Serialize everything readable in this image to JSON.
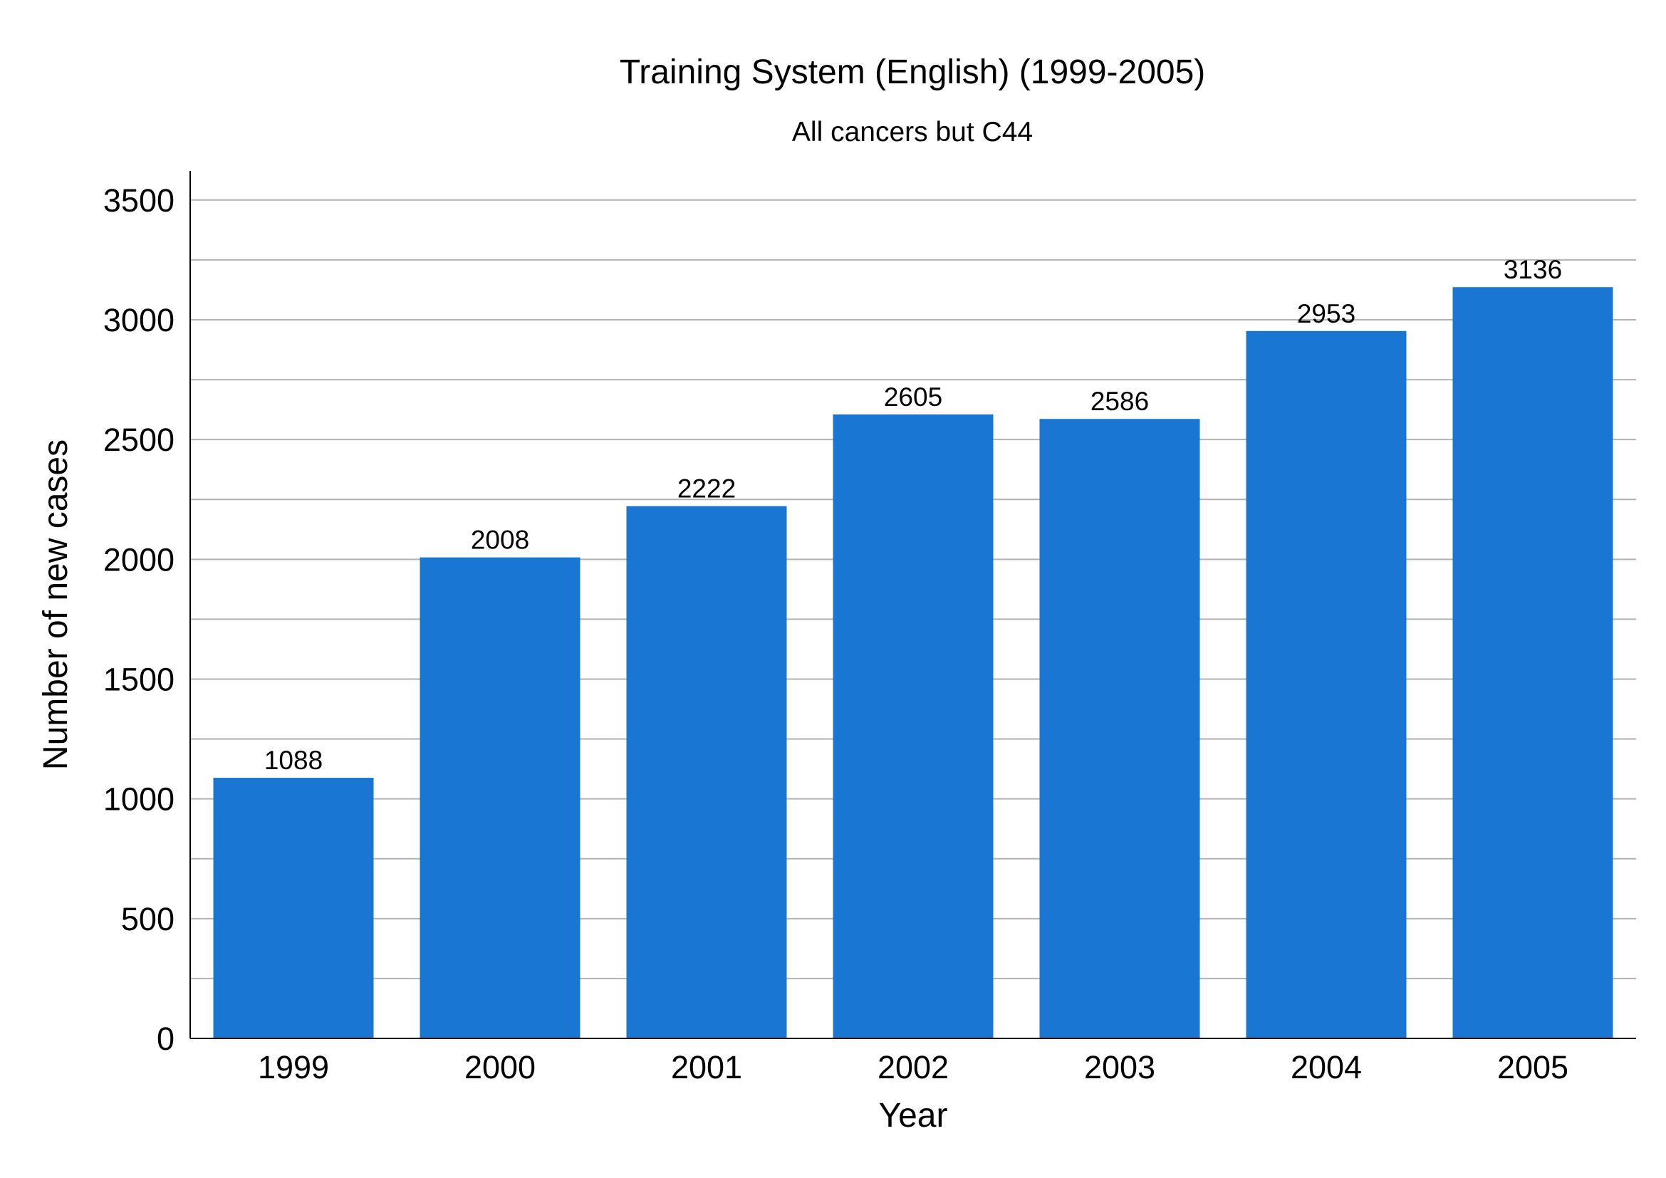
{
  "chart_data": {
    "type": "bar",
    "title": "Training System (English) (1999-2005)",
    "subtitle": "All cancers but C44",
    "xlabel": "Year",
    "ylabel": "Number of new cases",
    "categories": [
      "1999",
      "2000",
      "2001",
      "2002",
      "2003",
      "2004",
      "2005"
    ],
    "values": [
      1088,
      2008,
      2222,
      2605,
      2586,
      2953,
      3136
    ],
    "data_labels": [
      "1088",
      "2008",
      "2222",
      "2605",
      "2586",
      "2953",
      "3136"
    ],
    "ylim": [
      0,
      3625
    ],
    "yticks": [
      0,
      500,
      1000,
      1500,
      2000,
      2500,
      3000,
      3500
    ],
    "ytick_labels": [
      "0",
      "500",
      "1000",
      "1500",
      "2000",
      "2500",
      "3000",
      "3500"
    ],
    "minor_gridlines": [
      250,
      750,
      1250,
      1750,
      2250,
      2750,
      3250
    ],
    "grid": true,
    "legend": "none",
    "bar_color": "#1976D2"
  }
}
